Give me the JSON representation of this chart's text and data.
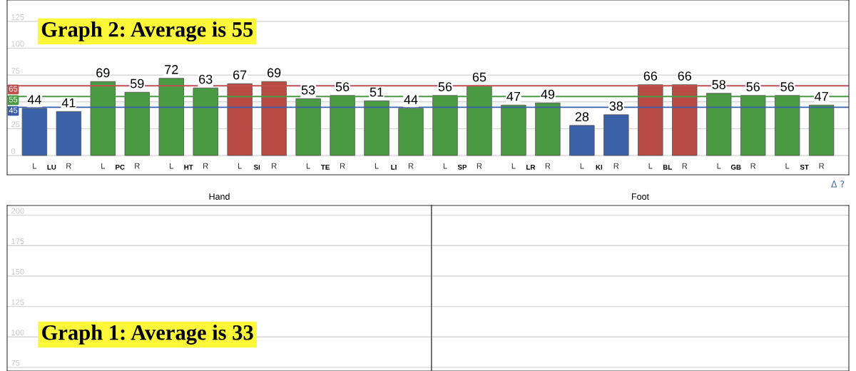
{
  "chart_data": [
    {
      "type": "bar",
      "categories": [
        "L",
        "R",
        "L",
        "R",
        "L",
        "R",
        "L",
        "R",
        "L",
        "R",
        "L",
        "R",
        "L",
        "R",
        "L",
        "R",
        "L",
        "R",
        "L",
        "R",
        "L",
        "R",
        "L",
        "R"
      ],
      "values": [
        44,
        41,
        69,
        59,
        72,
        63,
        67,
        69,
        53,
        56,
        51,
        44,
        56,
        65,
        47,
        49,
        28,
        38,
        66,
        66,
        58,
        56,
        56,
        47
      ],
      "colors": [
        "#3a60a8",
        "#3a60a8",
        "#4a9a44",
        "#4a9a44",
        "#4a9a44",
        "#4a9a44",
        "#b84c44",
        "#b84c44",
        "#4a9a44",
        "#4a9a44",
        "#4a9a44",
        "#4a9a44",
        "#4a9a44",
        "#4a9a44",
        "#4a9a44",
        "#4a9a44",
        "#3a60a8",
        "#3a60a8",
        "#b84c44",
        "#b84c44",
        "#4a9a44",
        "#4a9a44",
        "#4a9a44",
        "#4a9a44"
      ],
      "data_labels": true,
      "ylim": [
        -18,
        145
      ],
      "yticks": [
        0,
        25,
        {
          "value": 50,
          "label": null
        },
        75,
        100,
        125
      ],
      "grid": "y",
      "ref_lines": [
        {
          "axis": "y",
          "value": 65,
          "label": "65",
          "color": "#c0504d"
        },
        {
          "axis": "y",
          "value": 55,
          "label": "55",
          "color": "#4a9a44"
        },
        {
          "axis": "y",
          "value": 45,
          "label": "45",
          "color": "#3a5fa8"
        }
      ],
      "annotations": [
        "Graph 2: Average is 55",
        "LU",
        "PC",
        "HT",
        "SI",
        "TE",
        "LI",
        "SP",
        "LR",
        "KI",
        "BL",
        "GB",
        "ST"
      ]
    },
    {
      "type": "bar",
      "categories": [
        "Hand"
      ],
      "values": [
        null
      ],
      "ylim": [
        72,
        208
      ],
      "yticks": [
        75,
        100,
        125,
        150,
        175,
        200
      ],
      "grid": "y",
      "annotations": [
        "Graph 1: Average is 33"
      ]
    },
    {
      "type": "bar",
      "categories": [
        "Foot"
      ],
      "values": [
        null
      ],
      "ylim": [
        72,
        208
      ],
      "yticks": [
        75,
        100,
        125,
        150,
        175,
        200
      ],
      "grid": "y",
      "tick_labels": "x",
      "annotations": [
        "Δ ?"
      ]
    }
  ]
}
